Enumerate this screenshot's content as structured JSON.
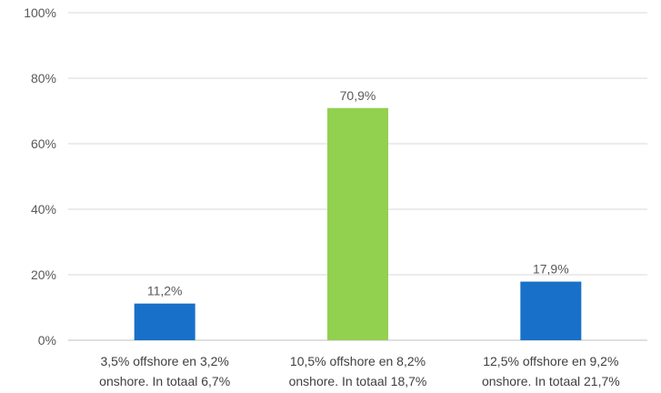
{
  "chart_data": {
    "type": "bar",
    "categories": [
      [
        "3,5% offshore en 3,2%",
        "onshore. In totaal 6,7%"
      ],
      [
        "10,5% offshore en 8,2%",
        "onshore. In totaal 18,7%"
      ],
      [
        "12,5% offshore en 9,2%",
        "onshore. In totaal 21,7%"
      ]
    ],
    "values": [
      11.2,
      70.9,
      17.9
    ],
    "data_labels": [
      "11,2%",
      "70,9%",
      "17,9%"
    ],
    "bar_colors": [
      "#1870c8",
      "#92d050",
      "#1870c8"
    ],
    "yticks": [
      0,
      20,
      40,
      60,
      80,
      100
    ],
    "ytick_labels": [
      "0%",
      "20%",
      "40%",
      "60%",
      "80%",
      "100%"
    ],
    "ylim": [
      0,
      100
    ],
    "grid": true,
    "title": "",
    "xlabel": "",
    "ylabel": "",
    "legend": "none"
  }
}
